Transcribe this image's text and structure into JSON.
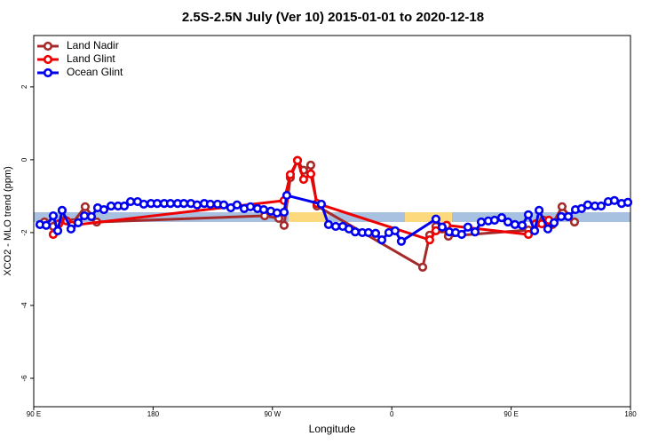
{
  "chart_data": {
    "type": "line",
    "title": "2.5S-2.5N July (Ver 10)   2015-01-01 to 2020-12-18",
    "x_label": "Longitude",
    "y_label": "XCO2 - MLO trend (ppm)",
    "xlim": [
      90,
      540
    ],
    "ylim": [
      -6.78,
      3.41
    ],
    "xticks": [
      {
        "value": 90,
        "label": "90 E"
      },
      {
        "value": 180,
        "label": "180"
      },
      {
        "value": 270,
        "label": "90 W"
      },
      {
        "value": 360,
        "label": "0"
      },
      {
        "value": 450,
        "label": "90 E"
      },
      {
        "value": 540,
        "label": "180"
      }
    ],
    "yticks": [
      -6,
      -4,
      -2,
      0,
      2
    ],
    "legend": "top-left",
    "series": [
      {
        "name": "Land Nadir",
        "color": "#a52a2a",
        "x": [
          98.1,
          104.7,
          113.4,
          119.4,
          128.8,
          137.5,
          264.1,
          274.8,
          278.8,
          283.5,
          288.9,
          293.5,
          298.9,
          303.6,
          383.3,
          388.6,
          393.3,
          398,
          402.7,
          463,
          474.4,
          481.1,
          488.4,
          497.8
        ],
        "values": [
          -1.71,
          -1.83,
          -1.66,
          -1.73,
          -1.29,
          -1.71,
          -1.54,
          -1.61,
          -1.8,
          -0.49,
          -0.02,
          -0.29,
          -0.15,
          -1.27,
          -2.95,
          -2.07,
          -1.83,
          -1.9,
          -2.1,
          -1.93,
          -1.66,
          -1.78,
          -1.29,
          -1.71
        ]
      },
      {
        "name": "Land Glint",
        "color": "#ee0000",
        "x": [
          104.7,
          108.8,
          114.8,
          118.8,
          278.8,
          283.5,
          288.9,
          293.5,
          298.9,
          303.6,
          388.6,
          393.3,
          398,
          401.4,
          463,
          468.4,
          473.1,
          478.4
        ],
        "values": [
          -2.05,
          -1.76,
          -1.68,
          -1.8,
          -1.12,
          -0.41,
          -0.02,
          -0.54,
          -0.39,
          -1.2,
          -2.2,
          -1.95,
          -1.85,
          -1.8,
          -2.05,
          -1.76,
          -1.76,
          -1.66
        ]
      },
      {
        "name": "Ocean Glint",
        "color": "#0000ee",
        "x": [
          94.7,
          99.4,
          104.7,
          108.1,
          111.4,
          118.1,
          123.5,
          128.2,
          133.5,
          138.2,
          142.9,
          148.3,
          153.6,
          158.3,
          163,
          168.3,
          173,
          178.4,
          183.1,
          188.4,
          193.1,
          198.5,
          203.2,
          208.5,
          213.2,
          218.6,
          223.2,
          228.6,
          233.3,
          238.6,
          243.3,
          248.7,
          253.4,
          258.7,
          263.4,
          268.8,
          273.5,
          278.8,
          280.8,
          306.9,
          312.3,
          317.7,
          323,
          327.7,
          332.4,
          337.8,
          342.4,
          347.8,
          352.5,
          357.8,
          362.5,
          367.2,
          393.3,
          398,
          403.4,
          408.1,
          412.7,
          417.4,
          422.8,
          427.5,
          432.8,
          437.5,
          442.9,
          447.6,
          452.9,
          458.3,
          463,
          467.7,
          471.1,
          477.7,
          482.4,
          487.8,
          493.1,
          498.5,
          503.1,
          507.8,
          513.2,
          517.9,
          523.2,
          527.9,
          533.3,
          538
        ],
        "values": [
          -1.78,
          -1.8,
          -1.54,
          -1.95,
          -1.39,
          -1.9,
          -1.73,
          -1.54,
          -1.56,
          -1.32,
          -1.37,
          -1.27,
          -1.27,
          -1.27,
          -1.15,
          -1.15,
          -1.22,
          -1.2,
          -1.2,
          -1.2,
          -1.2,
          -1.2,
          -1.2,
          -1.2,
          -1.24,
          -1.2,
          -1.22,
          -1.22,
          -1.24,
          -1.32,
          -1.24,
          -1.34,
          -1.29,
          -1.34,
          -1.37,
          -1.41,
          -1.46,
          -1.44,
          -0.98,
          -1.22,
          -1.78,
          -1.83,
          -1.83,
          -1.9,
          -1.98,
          -2,
          -2,
          -2.02,
          -2.2,
          -2,
          -1.95,
          -2.24,
          -1.63,
          -1.85,
          -1.98,
          -2,
          -2.05,
          -1.85,
          -1.98,
          -1.71,
          -1.68,
          -1.66,
          -1.59,
          -1.71,
          -1.78,
          -1.8,
          -1.51,
          -1.95,
          -1.39,
          -1.9,
          -1.73,
          -1.56,
          -1.56,
          -1.37,
          -1.34,
          -1.24,
          -1.27,
          -1.27,
          -1.15,
          -1.12,
          -1.2,
          -1.17
        ]
      }
    ]
  }
}
